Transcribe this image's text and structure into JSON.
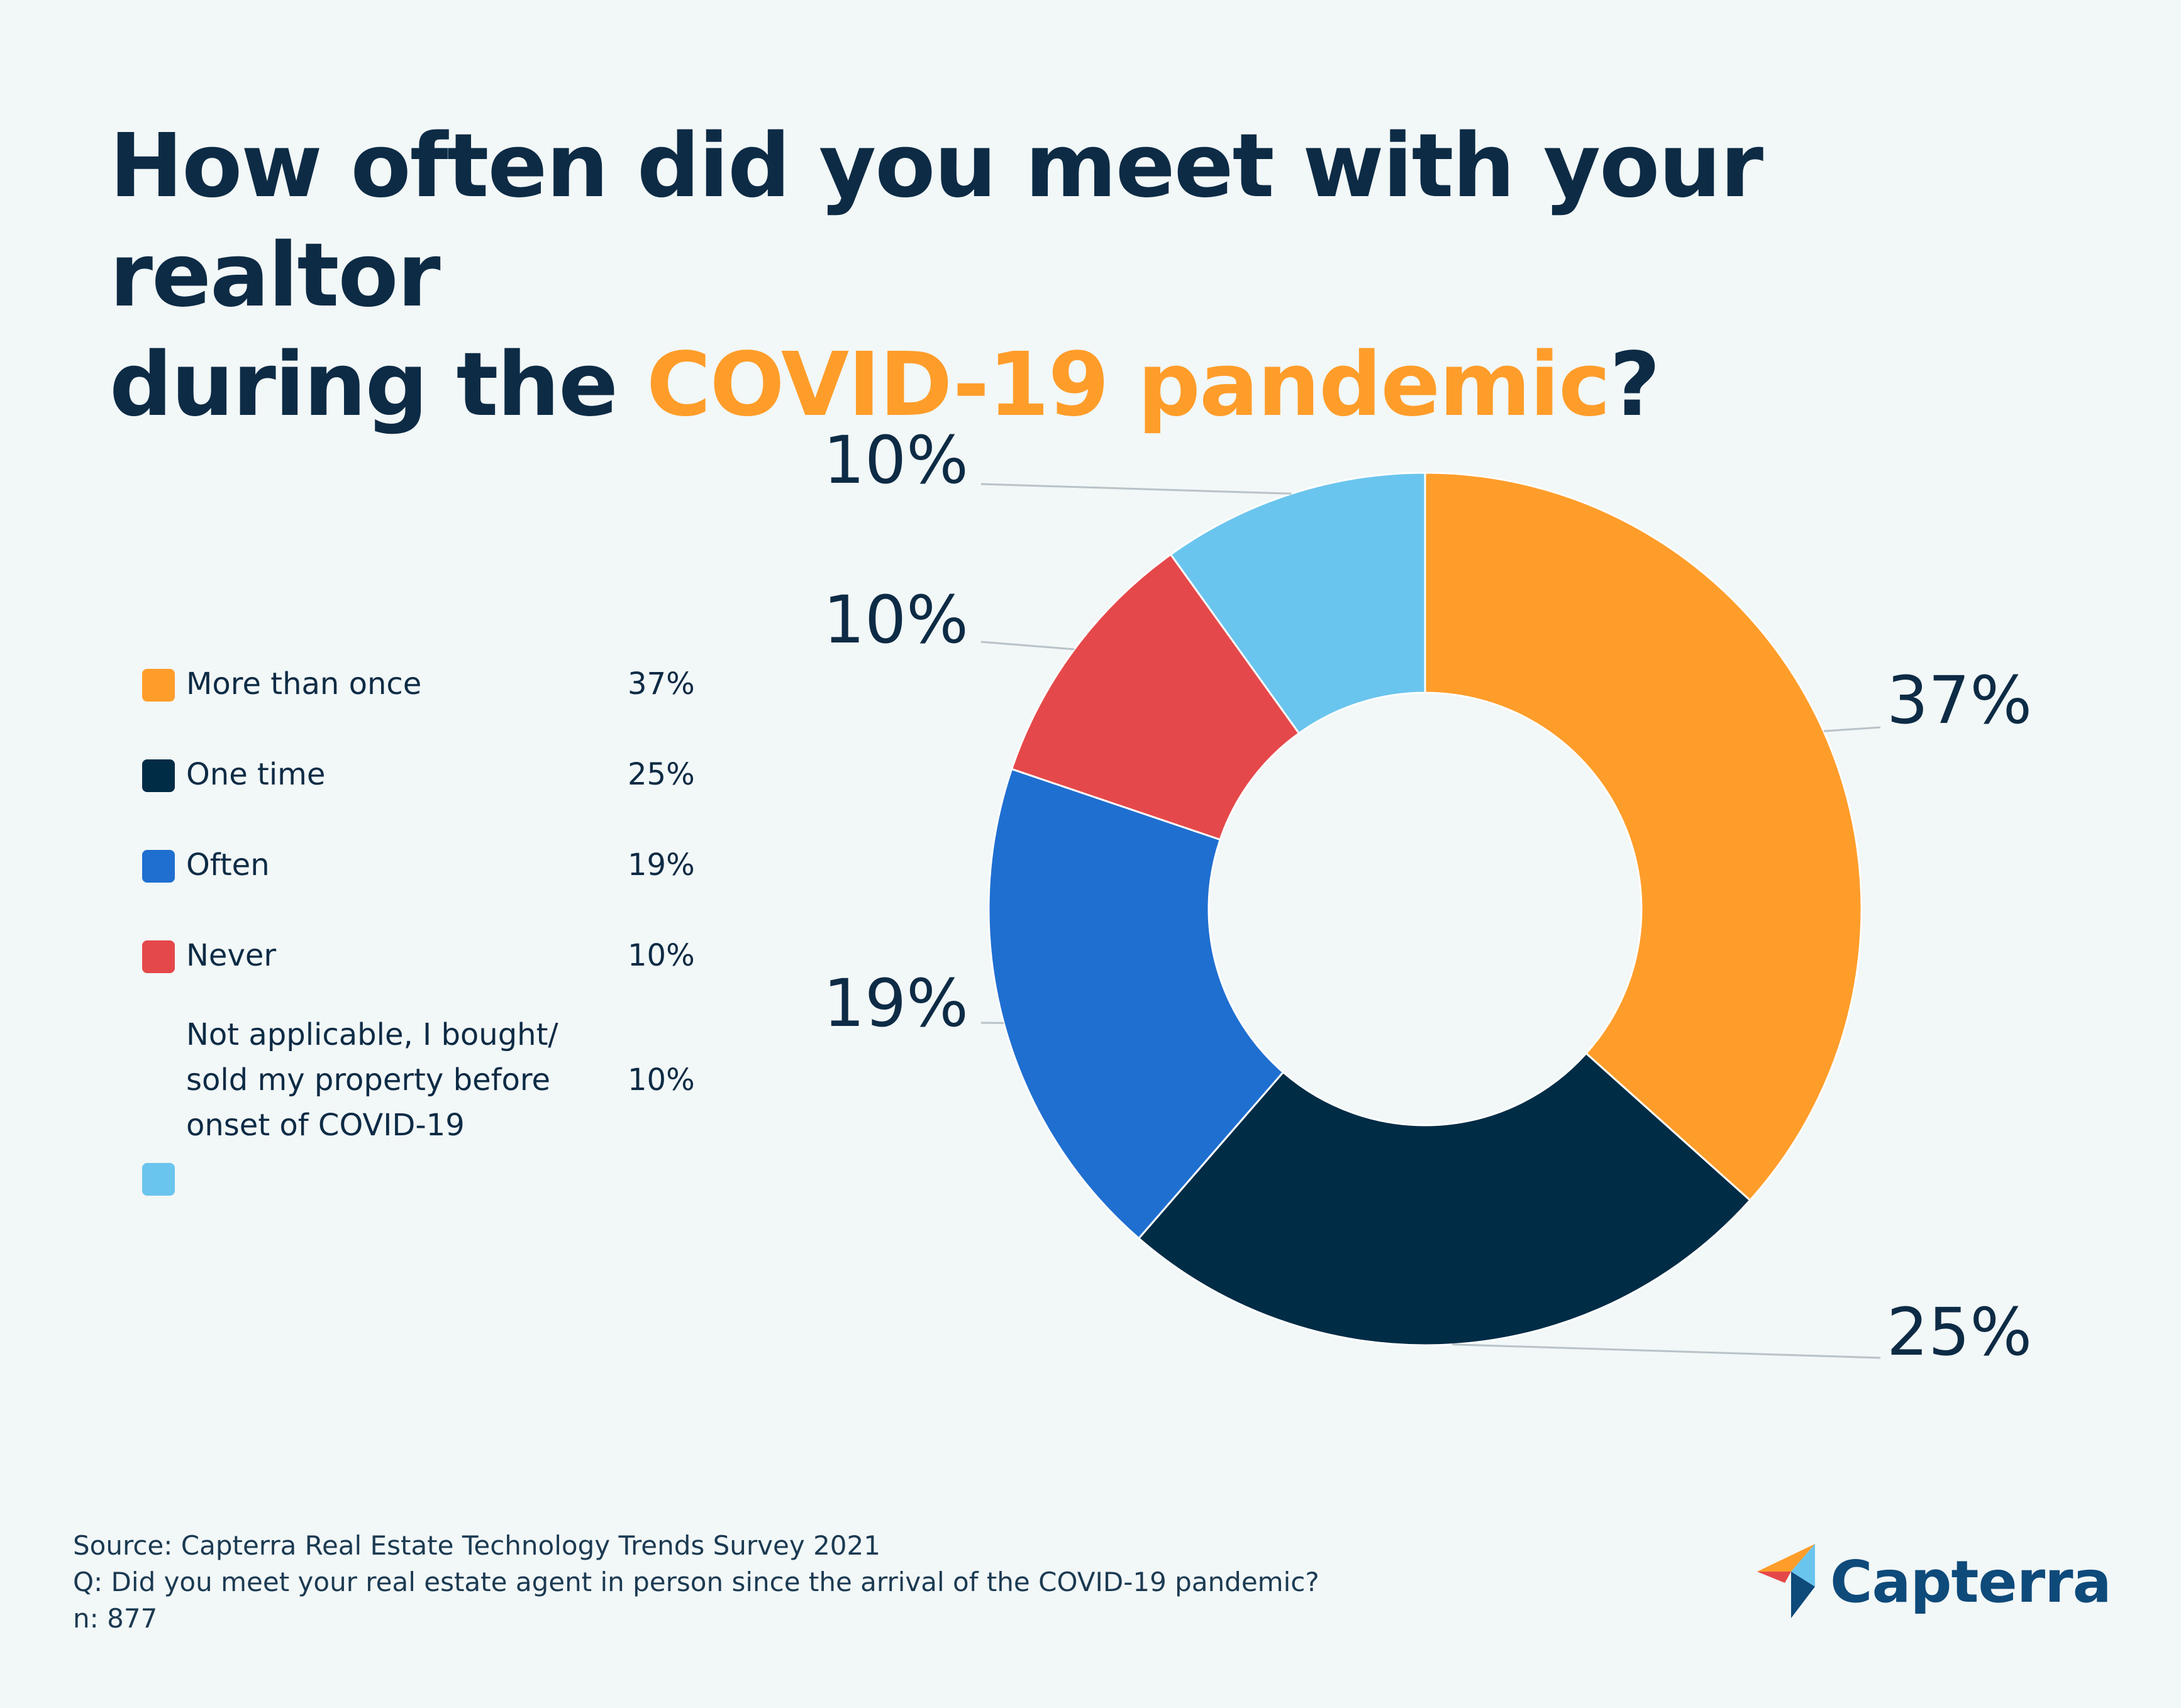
{
  "title": {
    "line1": "How often did you meet with your realtor",
    "line2_prefix": "during the ",
    "line2_highlight": "COVID-19 pandemic",
    "line2_suffix": "?",
    "highlight_color": "#ff9d2a"
  },
  "chart_data": {
    "type": "pie",
    "variant": "donut",
    "categories": [
      "More than once",
      "One time",
      "Often",
      "Never",
      "Not applicable, I bought/ sold my property before onset of COVID-19"
    ],
    "values": [
      37,
      25,
      19,
      10,
      10
    ],
    "value_labels": [
      "37%",
      "25%",
      "19%",
      "10%",
      "10%"
    ],
    "colors": [
      "#ff9d2a",
      "#002c46",
      "#1f6fd1",
      "#e5484a",
      "#6ac5ee"
    ],
    "legend_placement": "left"
  },
  "legend": {
    "items": [
      {
        "label_lines": [
          "More than once"
        ],
        "value": "37%",
        "color": "#ff9d2a"
      },
      {
        "label_lines": [
          "One time"
        ],
        "value": "25%",
        "color": "#002c46"
      },
      {
        "label_lines": [
          "Often"
        ],
        "value": "19%",
        "color": "#1f6fd1"
      },
      {
        "label_lines": [
          "Never"
        ],
        "value": "10%",
        "color": "#e5484a"
      },
      {
        "label_lines": [
          "Not applicable, I bought/",
          "sold my property before",
          "onset of COVID-19"
        ],
        "value": "10%",
        "color": "#6ac5ee"
      }
    ]
  },
  "footer": {
    "source": "Source: Capterra Real Estate Technology Trends Survey 2021",
    "question": "Q: Did you meet your real estate agent in person since the arrival of the COVID-19 pandemic?",
    "n": "n: 877"
  },
  "logo": {
    "text": "Capterra",
    "icon": "capterra-logo-icon"
  }
}
